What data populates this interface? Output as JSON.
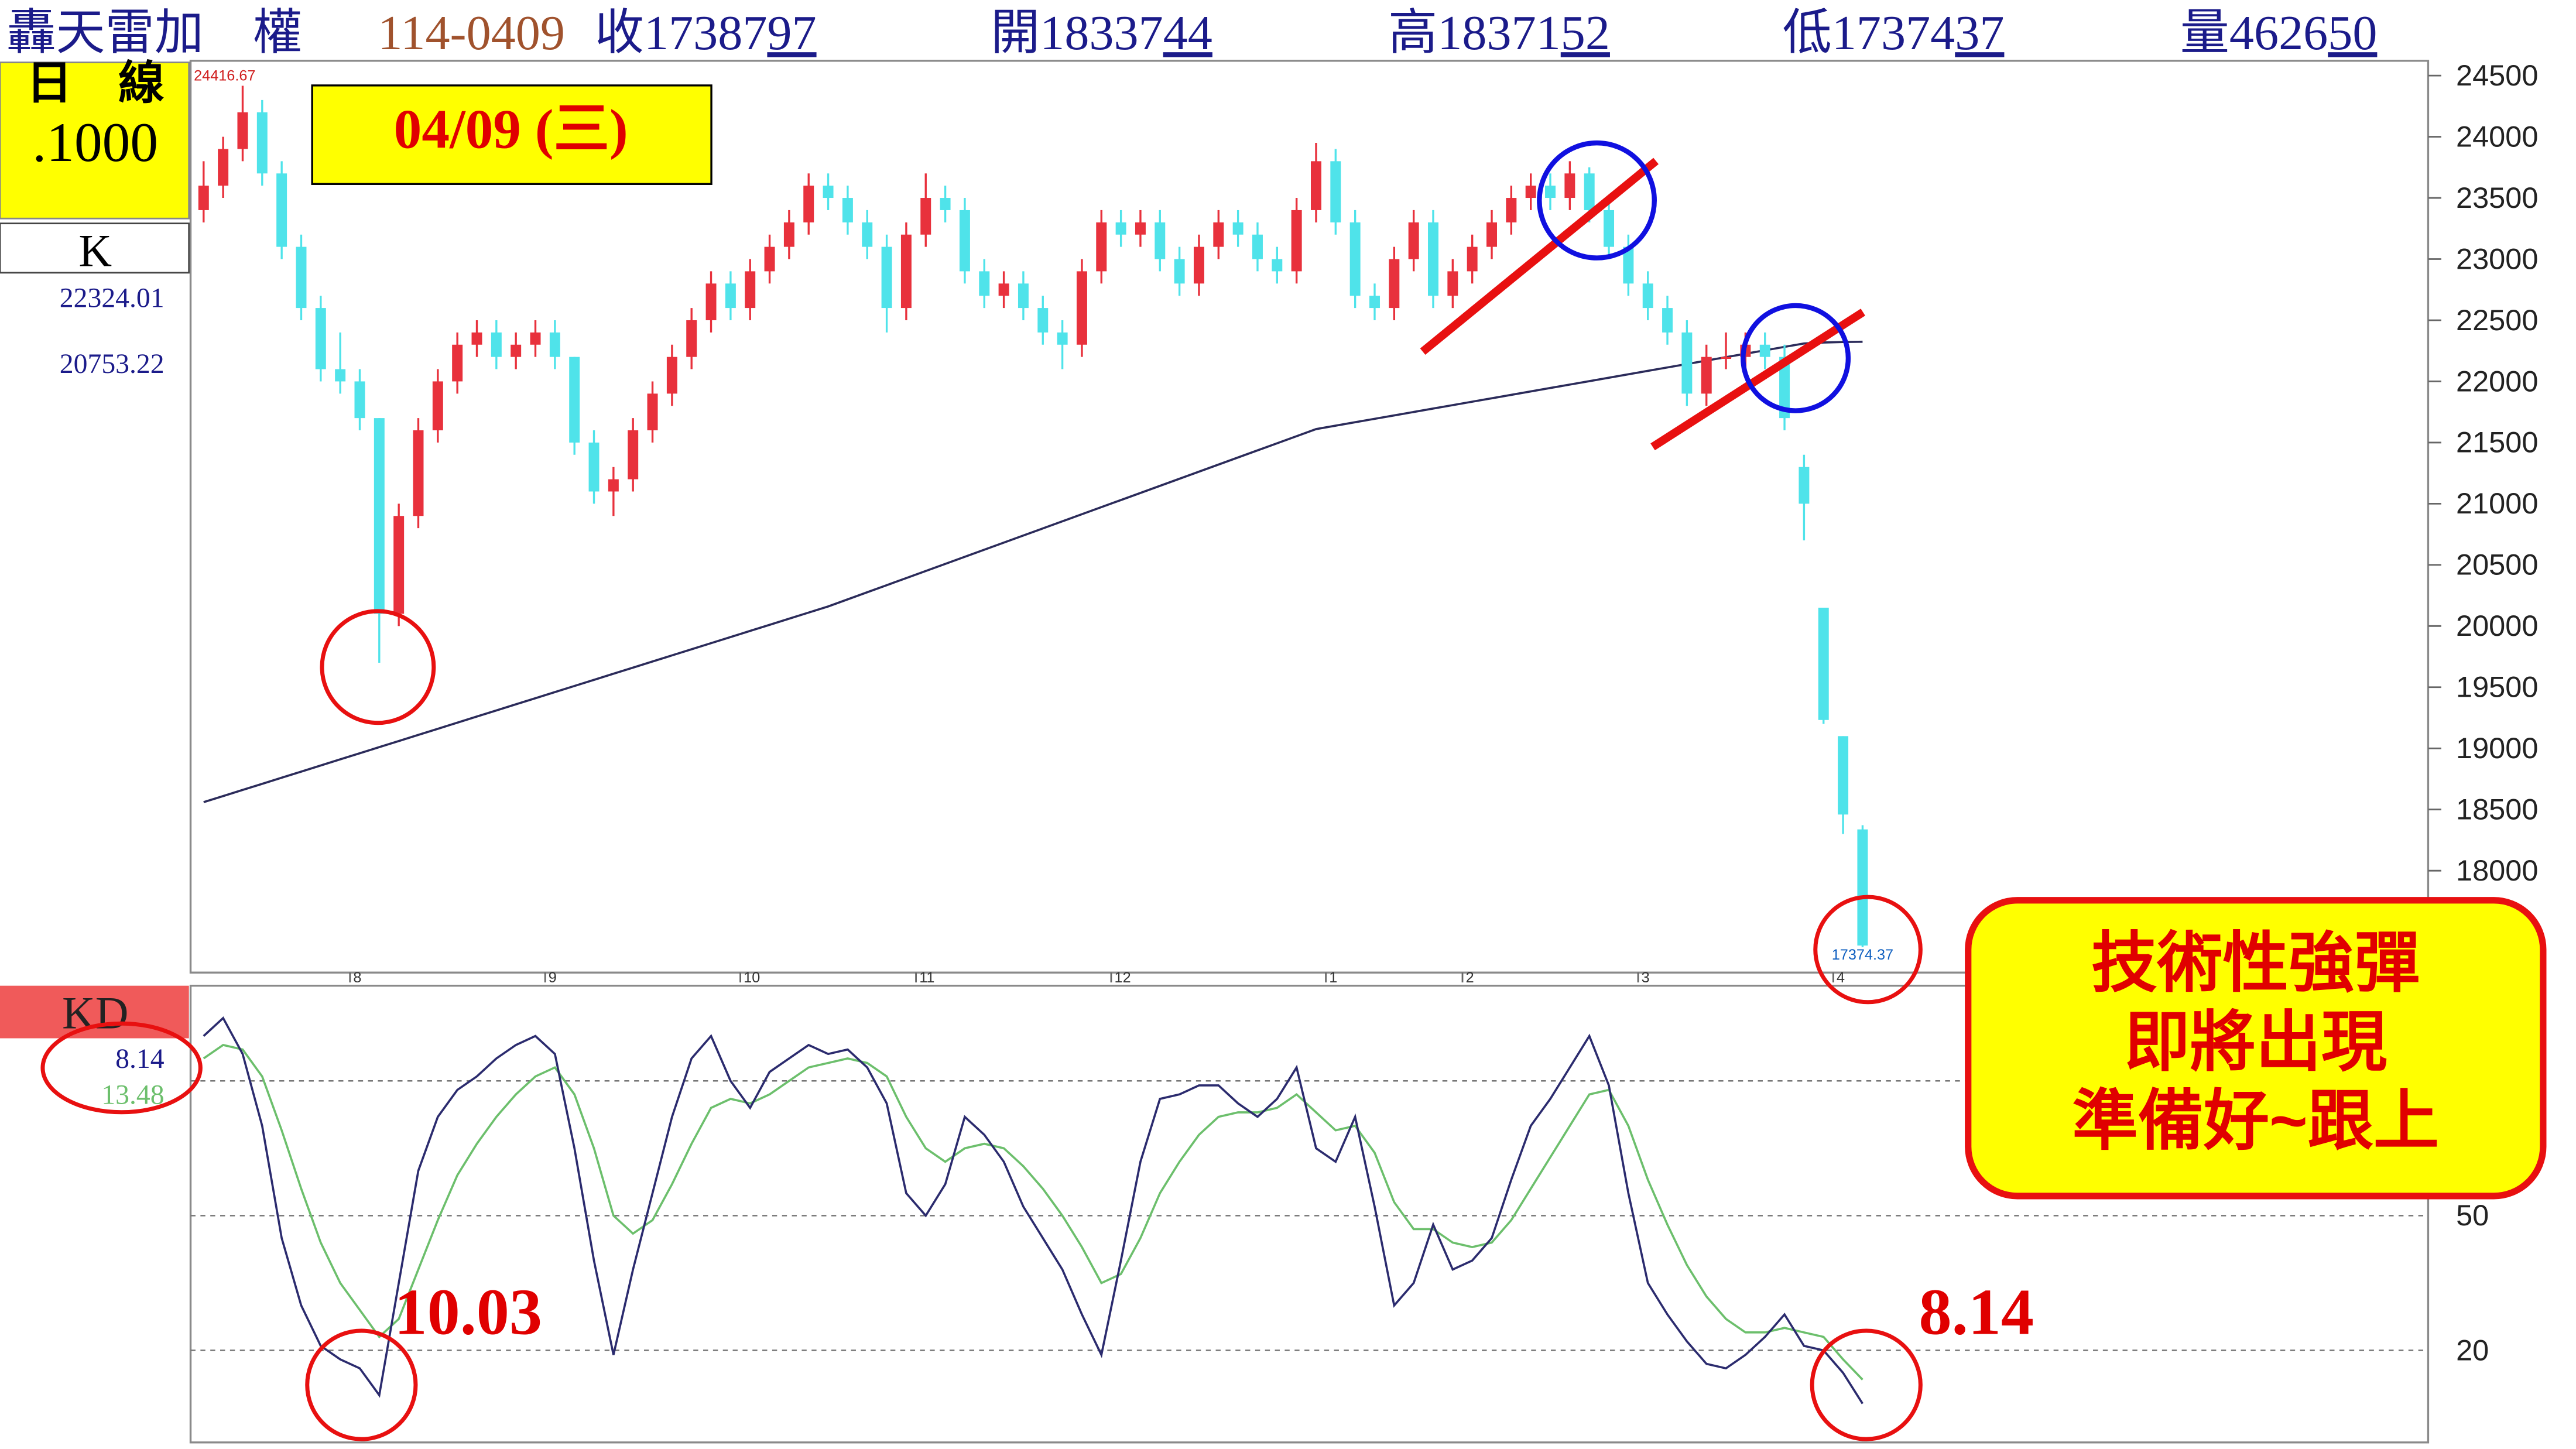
{
  "header": {
    "name": "轟天雷加　權",
    "date": "114-0409",
    "quotes": [
      {
        "label": "收",
        "int": "17387",
        "dec": "97"
      },
      {
        "label": "開",
        "int": "18337",
        "dec": "44"
      },
      {
        "label": "高",
        "int": "18371",
        "dec": "52"
      },
      {
        "label": "低",
        "int": "17374",
        "dec": "37"
      },
      {
        "label": "量",
        "int": "4626",
        "dec": "50"
      }
    ]
  },
  "panel": {
    "period": "日　線",
    "unit": ".1000",
    "main": "K",
    "ma2_value": 20753.22,
    "sub": "KD"
  },
  "annotations": {
    "date_box": "04/09 (三)",
    "callout": [
      "技術性強彈",
      "即將出現",
      "準備好~跟上"
    ]
  },
  "chart_data": [
    {
      "type": "candlestick",
      "up_color": "#e8313c",
      "down_color": "#4fe3ea",
      "grid": false,
      "ylim": [
        17167,
        24621
      ],
      "yticks": [
        18000,
        18500,
        19000,
        19500,
        20000,
        20500,
        21000,
        21500,
        22000,
        22500,
        23000,
        23500,
        24000,
        24500
      ],
      "categories": [
        null,
        null,
        null,
        null,
        null,
        null,
        null,
        null,
        "8",
        null,
        null,
        null,
        null,
        null,
        null,
        null,
        null,
        null,
        "9",
        null,
        null,
        null,
        null,
        null,
        null,
        null,
        null,
        null,
        "10",
        null,
        null,
        null,
        null,
        null,
        null,
        null,
        null,
        "11",
        null,
        null,
        null,
        null,
        null,
        null,
        null,
        null,
        null,
        "12",
        null,
        null,
        null,
        null,
        null,
        null,
        null,
        null,
        null,
        null,
        "1",
        null,
        null,
        null,
        null,
        null,
        null,
        "2",
        null,
        null,
        null,
        null,
        null,
        null,
        null,
        null,
        "3",
        null,
        null,
        null,
        null,
        null,
        null,
        null,
        null,
        null,
        "4",
        null
      ],
      "ohlc": [
        [
          23400,
          23800,
          23300,
          23600
        ],
        [
          23600,
          24000,
          23500,
          23900
        ],
        [
          23900,
          24416.67,
          23800,
          24200
        ],
        [
          24200,
          24300,
          23600,
          23700
        ],
        [
          23700,
          23800,
          23000,
          23100
        ],
        [
          23100,
          23200,
          22500,
          22600
        ],
        [
          22600,
          22700,
          22000,
          22100
        ],
        [
          22100,
          22400,
          21900,
          22000
        ],
        [
          22000,
          22100,
          21600,
          21700
        ],
        [
          21700,
          21700,
          19700,
          20100
        ],
        [
          20100,
          21000,
          20000,
          20900
        ],
        [
          20900,
          21700,
          20800,
          21600
        ],
        [
          21600,
          22100,
          21500,
          22000
        ],
        [
          22000,
          22400,
          21900,
          22300
        ],
        [
          22300,
          22500,
          22200,
          22400
        ],
        [
          22400,
          22500,
          22100,
          22200
        ],
        [
          22200,
          22400,
          22100,
          22300
        ],
        [
          22300,
          22500,
          22200,
          22400
        ],
        [
          22400,
          22500,
          22100,
          22200
        ],
        [
          22200,
          22200,
          21400,
          21500
        ],
        [
          21500,
          21600,
          21000,
          21100
        ],
        [
          21100,
          21300,
          20900,
          21200
        ],
        [
          21200,
          21700,
          21100,
          21600
        ],
        [
          21600,
          22000,
          21500,
          21900
        ],
        [
          21900,
          22300,
          21800,
          22200
        ],
        [
          22200,
          22600,
          22100,
          22500
        ],
        [
          22500,
          22900,
          22400,
          22800
        ],
        [
          22800,
          22900,
          22500,
          22600
        ],
        [
          22600,
          23000,
          22500,
          22900
        ],
        [
          22900,
          23200,
          22800,
          23100
        ],
        [
          23100,
          23400,
          23000,
          23300
        ],
        [
          23300,
          23700,
          23200,
          23600
        ],
        [
          23600,
          23700,
          23400,
          23500
        ],
        [
          23500,
          23600,
          23200,
          23300
        ],
        [
          23300,
          23400,
          23000,
          23100
        ],
        [
          23100,
          23200,
          22400,
          22600
        ],
        [
          22600,
          23300,
          22500,
          23200
        ],
        [
          23200,
          23700,
          23100,
          23500
        ],
        [
          23500,
          23600,
          23300,
          23400
        ],
        [
          23400,
          23500,
          22800,
          22900
        ],
        [
          22900,
          23000,
          22600,
          22700
        ],
        [
          22700,
          22900,
          22600,
          22800
        ],
        [
          22800,
          22900,
          22500,
          22600
        ],
        [
          22600,
          22700,
          22300,
          22400
        ],
        [
          22400,
          22500,
          22100,
          22300
        ],
        [
          22300,
          23000,
          22200,
          22900
        ],
        [
          22900,
          23400,
          22800,
          23300
        ],
        [
          23300,
          23400,
          23100,
          23200
        ],
        [
          23200,
          23400,
          23100,
          23300
        ],
        [
          23300,
          23400,
          22900,
          23000
        ],
        [
          23000,
          23100,
          22700,
          22800
        ],
        [
          22800,
          23200,
          22700,
          23100
        ],
        [
          23100,
          23400,
          23000,
          23300
        ],
        [
          23300,
          23400,
          23100,
          23200
        ],
        [
          23200,
          23300,
          22900,
          23000
        ],
        [
          23000,
          23100,
          22800,
          22900
        ],
        [
          22900,
          23500,
          22800,
          23400
        ],
        [
          23400,
          23950,
          23300,
          23800
        ],
        [
          23800,
          23900,
          23200,
          23300
        ],
        [
          23300,
          23400,
          22600,
          22700
        ],
        [
          22700,
          22800,
          22500,
          22600
        ],
        [
          22600,
          23100,
          22500,
          23000
        ],
        [
          23000,
          23400,
          22900,
          23300
        ],
        [
          23300,
          23400,
          22600,
          22700
        ],
        [
          22700,
          23000,
          22600,
          22900
        ],
        [
          22900,
          23200,
          22800,
          23100
        ],
        [
          23100,
          23400,
          23000,
          23300
        ],
        [
          23300,
          23600,
          23200,
          23500
        ],
        [
          23500,
          23700,
          23400,
          23600
        ],
        [
          23600,
          23700,
          23400,
          23500
        ],
        [
          23500,
          23800,
          23400,
          23700
        ],
        [
          23700,
          23750,
          23300,
          23400
        ],
        [
          23400,
          23500,
          23000,
          23100
        ],
        [
          23100,
          23200,
          22700,
          22800
        ],
        [
          22800,
          22900,
          22500,
          22600
        ],
        [
          22600,
          22700,
          22300,
          22400
        ],
        [
          22400,
          22500,
          21800,
          21900
        ],
        [
          21900,
          22300,
          21800,
          22200
        ],
        [
          22200,
          22400,
          22100,
          22200
        ],
        [
          22200,
          22400,
          22100,
          22300
        ],
        [
          22300,
          22400,
          22100,
          22200
        ],
        [
          22200,
          22300,
          21600,
          21700
        ],
        [
          21300,
          21400,
          20700,
          21000
        ],
        [
          20150,
          20150,
          19200,
          19232
        ],
        [
          19100,
          19100,
          18300,
          18459
        ],
        [
          18337.44,
          18371.52,
          17374.37,
          17387.97
        ]
      ],
      "ma": {
        "color": "#2b2b5a",
        "values": [
          18560,
          18610,
          18660,
          18710,
          18760,
          18810,
          18860,
          18910,
          18960,
          19010,
          19060,
          19110,
          19160,
          19210,
          19260,
          19310,
          19360,
          19410,
          19460,
          19510,
          19560,
          19610,
          19660,
          19710,
          19760,
          19810,
          19860,
          19910,
          19960,
          20010,
          20060,
          20110,
          20160,
          20218,
          20276,
          20334,
          20392,
          20450,
          20508,
          20566,
          20624,
          20682,
          20740,
          20798,
          20856,
          20914,
          20972,
          21030,
          21088,
          21146,
          21204,
          21262,
          21320,
          21378,
          21436,
          21494,
          21552,
          21610,
          21638,
          21666,
          21694,
          21722,
          21750,
          21778,
          21806,
          21834,
          21862,
          21890,
          21918,
          21946,
          21974,
          22002,
          22030,
          22058,
          22086,
          22114,
          22142,
          22170,
          22198,
          22226,
          22254,
          22282,
          22310,
          22318,
          22322,
          22324.01
        ]
      }
    },
    {
      "type": "line",
      "grid": true,
      "ylim": [
        -0.5,
        101.2
      ],
      "yticks": [
        20,
        50,
        80
      ],
      "series": [
        {
          "color": "#2b2b6e",
          "values": [
            90,
            94,
            86,
            70,
            45,
            30,
            21,
            18,
            16,
            10.03,
            35,
            60,
            72,
            78,
            81,
            85,
            88,
            90,
            86,
            65,
            40,
            19,
            38,
            55,
            72,
            85,
            90,
            80,
            74,
            82,
            85,
            88,
            86,
            87,
            83,
            75,
            55,
            50,
            57,
            72,
            68,
            62,
            52,
            45,
            38,
            28,
            19,
            40,
            62,
            76,
            77,
            79,
            79,
            75,
            72,
            76,
            83,
            65,
            62,
            72,
            52,
            30,
            35,
            48,
            38,
            40,
            45,
            58,
            70,
            76,
            83,
            90,
            79,
            55,
            35,
            28,
            22,
            17,
            16,
            19,
            23,
            28,
            21,
            20,
            15,
            8.14
          ]
        },
        {
          "color": "#6cbf6c",
          "values": [
            85,
            88,
            87,
            81,
            69,
            56,
            44,
            35,
            29,
            23,
            27,
            38,
            49,
            59,
            66,
            72,
            77,
            81,
            83,
            77,
            65,
            50,
            46,
            49,
            57,
            66,
            74,
            76,
            75,
            77,
            80,
            83,
            84,
            85,
            84,
            81,
            72,
            65,
            62,
            65,
            66,
            65,
            61,
            56,
            50,
            43,
            35,
            37,
            45,
            55,
            62,
            68,
            72,
            73,
            73,
            74,
            77,
            73,
            69,
            70,
            64,
            53,
            47,
            47,
            44,
            43,
            44,
            49,
            56,
            63,
            70,
            77,
            78,
            70,
            58,
            48,
            39,
            32,
            27,
            24,
            24,
            25,
            24,
            23,
            18,
            13.48
          ]
        }
      ]
    }
  ]
}
